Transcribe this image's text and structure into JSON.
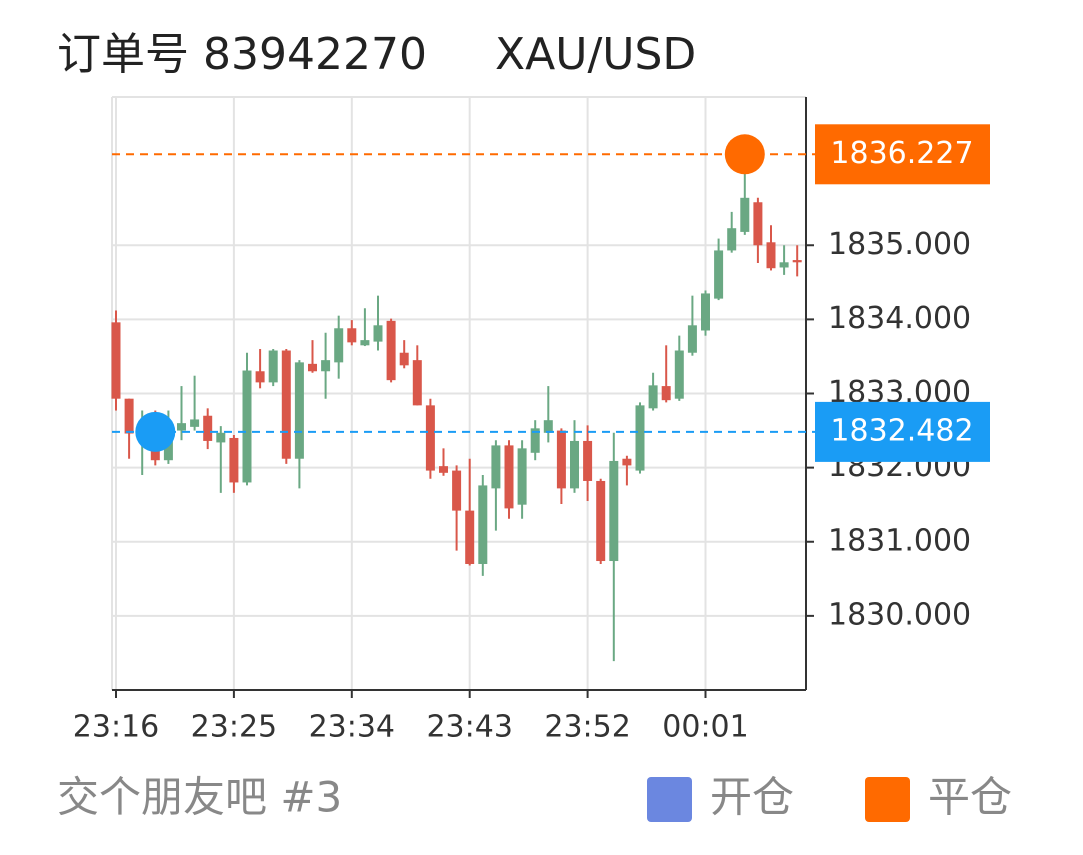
{
  "chart_data": {
    "type": "candlestick",
    "order_label": "订单号 83942270",
    "symbol": "XAU/USD",
    "categories": [
      "23:16",
      null,
      null,
      null,
      null,
      null,
      null,
      null,
      null,
      "23:25",
      null,
      null,
      null,
      null,
      null,
      null,
      null,
      null,
      "23:34",
      null,
      null,
      null,
      null,
      null,
      null,
      null,
      null,
      "23:43",
      null,
      null,
      null,
      null,
      null,
      null,
      null,
      null,
      "23:52",
      null,
      null,
      null,
      null,
      null,
      null,
      null,
      null,
      "00:01",
      null,
      null,
      null,
      null,
      null,
      null,
      null
    ],
    "open": [
      1833.96,
      1832.93,
      1832.4,
      1832.5,
      1832.1,
      1832.5,
      1832.55,
      1832.7,
      1832.34,
      1832.4,
      1831.8,
      1833.3,
      1833.15,
      1833.58,
      1832.12,
      1833.4,
      1833.3,
      1833.42,
      1833.88,
      1833.65,
      1833.7,
      1833.98,
      1833.55,
      1833.45,
      1832.84,
      1832.02,
      1831.96,
      1831.42,
      1830.7,
      1831.72,
      1832.3,
      1831.5,
      1832.2,
      1832.47,
      1832.5,
      1831.72,
      1832.36,
      1831.82,
      1830.74,
      1832.12,
      1831.96,
      1832.8,
      1833.1,
      1832.93,
      1833.55,
      1833.85,
      1834.28,
      1834.93,
      1835.18,
      1835.58,
      1835.04,
      1834.7,
      1834.8
    ],
    "high": [
      1834.12,
      1832.93,
      1832.77,
      1832.77,
      1832.77,
      1833.1,
      1833.24,
      1832.8,
      1832.56,
      1832.44,
      1833.55,
      1833.6,
      1833.6,
      1833.6,
      1833.45,
      1833.72,
      1833.82,
      1834.05,
      1833.99,
      1834.15,
      1834.32,
      1834.01,
      1833.72,
      1833.65,
      1832.93,
      1832.26,
      1832.03,
      1832.12,
      1831.9,
      1832.37,
      1832.37,
      1832.37,
      1832.64,
      1833.1,
      1832.53,
      1832.64,
      1832.57,
      1831.85,
      1832.47,
      1832.16,
      1832.88,
      1833.28,
      1833.65,
      1833.78,
      1834.32,
      1834.39,
      1835.09,
      1835.45,
      1835.99,
      1835.64,
      1835.27,
      1835.0,
      1835.0
    ],
    "low": [
      1832.77,
      1832.12,
      1831.9,
      1832.03,
      1832.05,
      1832.37,
      1832.5,
      1832.25,
      1831.66,
      1831.66,
      1831.76,
      1833.07,
      1833.1,
      1832.05,
      1831.72,
      1833.28,
      1832.93,
      1833.2,
      1833.65,
      1833.64,
      1833.58,
      1833.15,
      1833.34,
      1832.84,
      1831.85,
      1831.89,
      1830.88,
      1830.68,
      1830.54,
      1831.15,
      1831.31,
      1831.31,
      1832.1,
      1832.34,
      1831.51,
      1831.66,
      1831.55,
      1830.7,
      1829.39,
      1831.76,
      1831.92,
      1832.77,
      1832.88,
      1832.9,
      1833.51,
      1833.78,
      1834.26,
      1834.9,
      1835.14,
      1834.76,
      1834.66,
      1834.6,
      1834.58
    ],
    "close": [
      1832.93,
      1832.46,
      1832.55,
      1832.1,
      1832.6,
      1832.6,
      1832.65,
      1832.36,
      1832.47,
      1831.8,
      1833.31,
      1833.15,
      1833.58,
      1832.12,
      1833.42,
      1833.3,
      1833.45,
      1833.88,
      1833.69,
      1833.72,
      1833.92,
      1833.18,
      1833.38,
      1832.84,
      1831.96,
      1831.93,
      1831.42,
      1830.7,
      1831.76,
      1832.3,
      1831.45,
      1832.26,
      1832.53,
      1832.64,
      1831.72,
      1832.36,
      1831.82,
      1830.74,
      1832.09,
      1832.03,
      1832.84,
      1833.11,
      1832.91,
      1833.58,
      1833.92,
      1834.35,
      1834.93,
      1835.23,
      1835.64,
      1835.0,
      1834.69,
      1834.77,
      1834.77
    ],
    "up_color": "#6aa883",
    "down_color": "#d9574a",
    "ylim": [
      1829,
      1837
    ],
    "yticks": [
      {
        "value": 1830,
        "label": "1830.000"
      },
      {
        "value": 1831,
        "label": "1831.000"
      },
      {
        "value": 1832,
        "label": "1832.000"
      },
      {
        "value": 1833,
        "label": "1833.000"
      },
      {
        "value": 1834,
        "label": "1834.000"
      },
      {
        "value": 1835,
        "label": "1835.000"
      }
    ],
    "grid": true,
    "open_price": 1832.482,
    "open_color": "#1a9cf5",
    "close_price": 1836.227,
    "close_color": "#ff6a00",
    "footer": "交个朋友吧 #3",
    "legend": [
      {
        "name": "开仓",
        "color": "#6b87e0"
      },
      {
        "name": "平仓",
        "color": "#ff6a00"
      }
    ]
  }
}
